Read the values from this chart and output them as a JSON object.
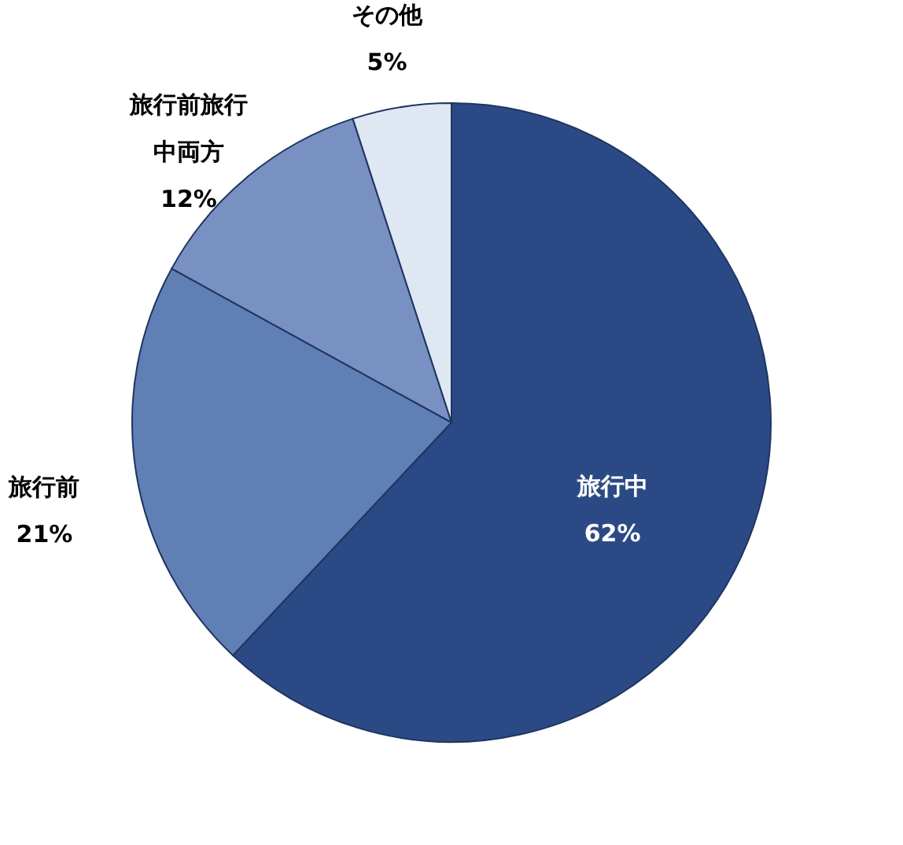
{
  "chart_data": {
    "type": "pie",
    "categories": [
      "旅行中",
      "旅行前",
      "旅行前旅行中両方",
      "その他"
    ],
    "values": [
      62,
      21,
      12,
      5
    ],
    "colors": [
      "#2b4a85",
      "#5f7fb5",
      "#7891c2",
      "#dfe7f3"
    ],
    "value_labels": [
      "62%",
      "21%",
      "12%",
      "5%"
    ]
  }
}
